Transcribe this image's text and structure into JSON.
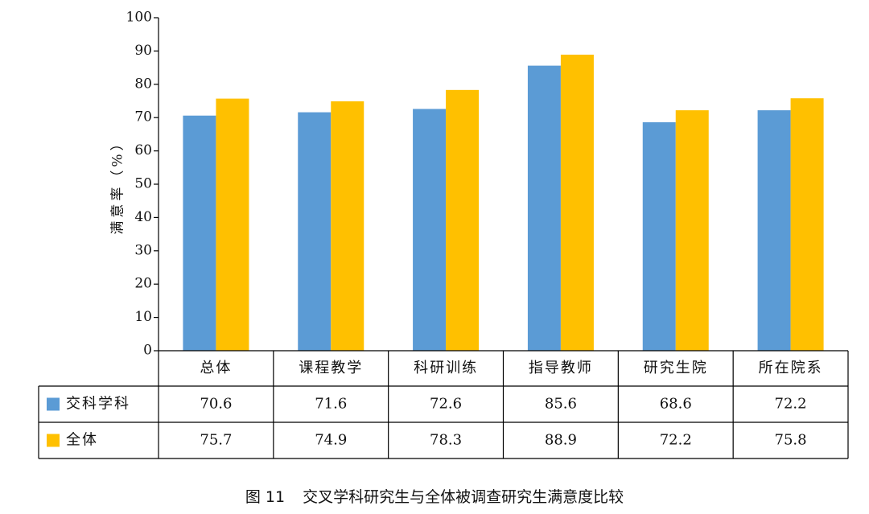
{
  "chart_data": {
    "type": "bar",
    "categories": [
      "总体",
      "课程教学",
      "科研训练",
      "指导教师",
      "研究生院",
      "所在院系"
    ],
    "series": [
      {
        "name": "交科学科",
        "color": "#5B9BD5",
        "values": [
          70.6,
          71.6,
          72.6,
          85.6,
          68.6,
          72.2
        ]
      },
      {
        "name": "全体",
        "color": "#FFC000",
        "values": [
          75.7,
          74.9,
          78.3,
          88.9,
          72.2,
          75.8
        ]
      }
    ],
    "ylabel": "满意率（%）",
    "ylim": [
      0,
      100
    ],
    "yticks": [
      0,
      10,
      20,
      30,
      40,
      50,
      60,
      70,
      80,
      90,
      100
    ],
    "grid": false,
    "legend": "data-table"
  },
  "caption": {
    "number": "图 11",
    "text": "交叉学科研究生与全体被调查研究生满意度比较"
  }
}
